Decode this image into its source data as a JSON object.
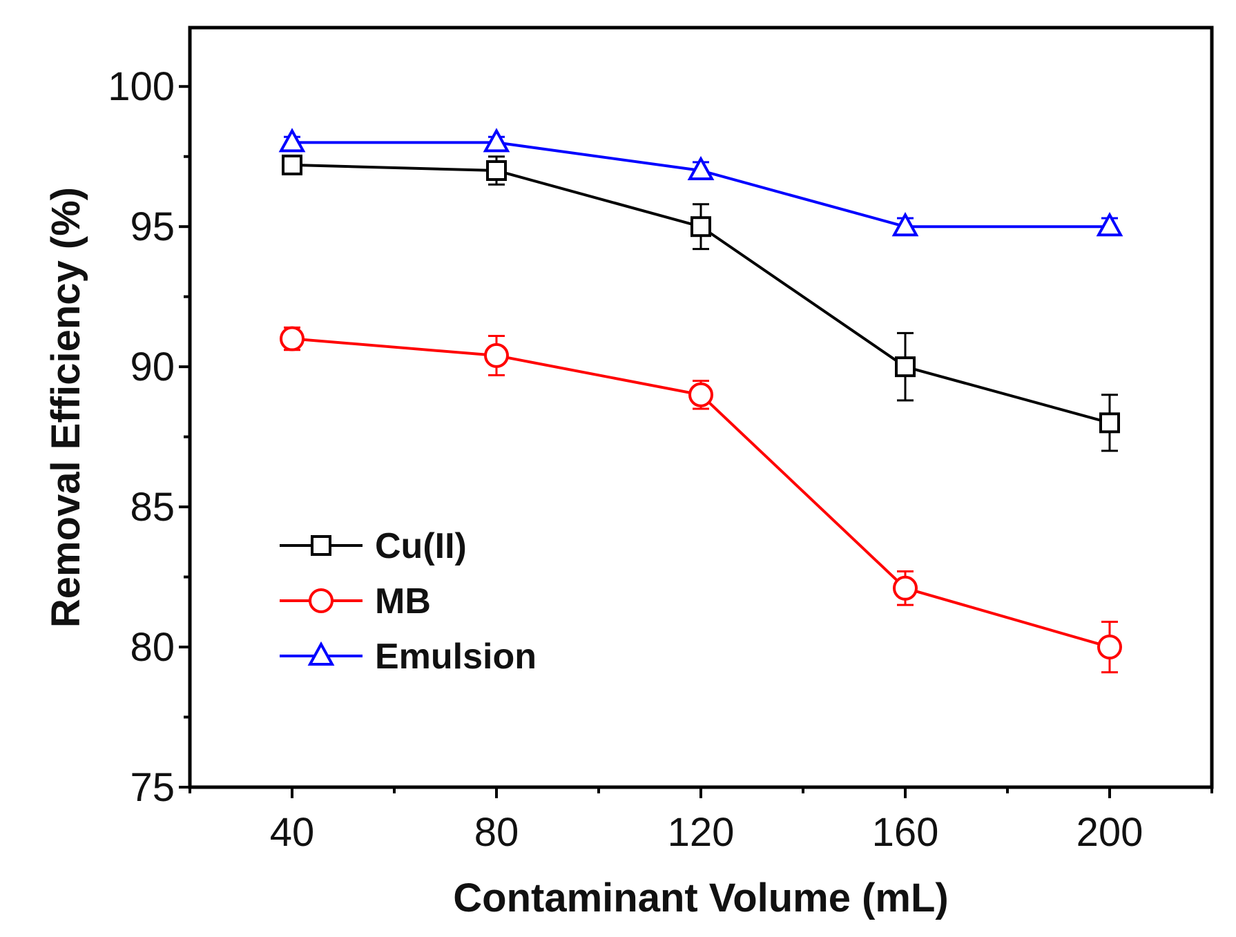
{
  "chart_data": {
    "type": "line",
    "title": "",
    "xlabel": "Contaminant Volume (mL)",
    "ylabel": "Removal Efficiency (%)",
    "x": [
      40,
      80,
      120,
      160,
      200
    ],
    "xticks": [
      "40",
      "80",
      "120",
      "160",
      "200"
    ],
    "yticks": [
      "75",
      "80",
      "85",
      "90",
      "95",
      "100"
    ],
    "xlim": [
      20,
      220
    ],
    "ylim": [
      75,
      102.1
    ],
    "grid": false,
    "legend_position": "lower-left",
    "series": [
      {
        "name": "Cu(II)",
        "color": "#000000",
        "marker": "square",
        "values": [
          97.2,
          97.0,
          95.0,
          90.0,
          88.0
        ],
        "errors": [
          0.3,
          0.5,
          0.8,
          1.2,
          1.0
        ]
      },
      {
        "name": "MB",
        "color": "#ff0000",
        "marker": "circle",
        "values": [
          91.0,
          90.4,
          89.0,
          82.1,
          80.0
        ],
        "errors": [
          0.4,
          0.7,
          0.5,
          0.6,
          0.9
        ]
      },
      {
        "name": "Emulsion",
        "color": "#0000ff",
        "marker": "triangle",
        "values": [
          98.0,
          98.0,
          97.0,
          95.0,
          95.0
        ],
        "errors": [
          0.2,
          0.2,
          0.3,
          0.3,
          0.3
        ]
      }
    ]
  }
}
